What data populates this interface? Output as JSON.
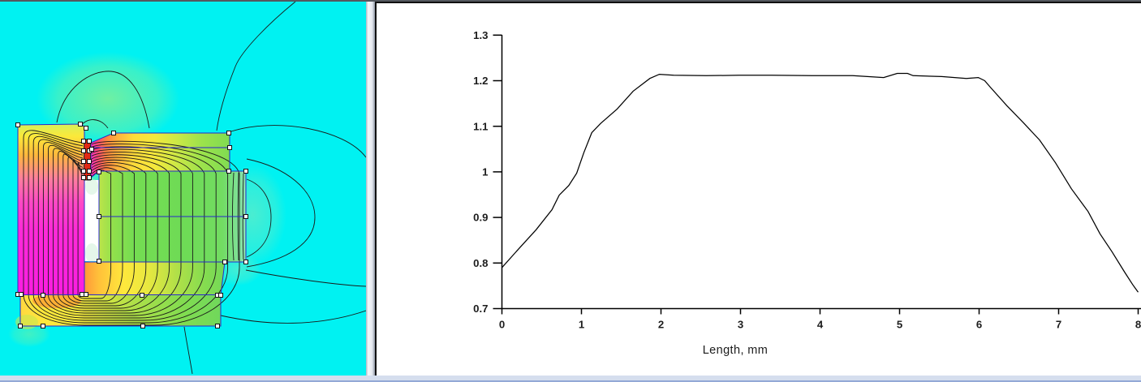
{
  "window": {
    "frame_top_color": "#54585e",
    "bottom_strip_color": "#d5deee",
    "divider_highlight": "#f6f8fb"
  },
  "left_panel": {
    "type": "magnetostatic-field-plot",
    "background_color": "#00f2f2",
    "outline_color": "#2828cc",
    "flux_line_color": "#1a1a1a",
    "handle_border_color": "#111111",
    "weak_field_tint_yellowgreen": "#b9ee6e",
    "weak_field_tint_mint": "#86e9b6",
    "regions": [
      {
        "name": "magnet-left-block",
        "colors": [
          "#d6ef5a",
          "#fbe93a",
          "#ffb83c",
          "#ff7e9e",
          "#ff2ad8"
        ]
      },
      {
        "name": "pole-top-trapezoid",
        "colors": [
          "#ff30c4",
          "#ff8440",
          "#ffdc3a",
          "#cce846",
          "#80dc52"
        ]
      },
      {
        "name": "core-right-block",
        "colors": [
          "#bce44a",
          "#74dc52",
          "#6edb56",
          "#8ce4b4"
        ]
      },
      {
        "name": "corner-region",
        "colors": [
          "#ff9838",
          "#ffe83c",
          "#b0e048",
          "#74d858"
        ]
      },
      {
        "name": "bottom-yoke",
        "colors": [
          "#ffd840",
          "#ffe33c",
          "#c9e646",
          "#70d85c"
        ]
      },
      {
        "name": "gap-source-bar",
        "color": "#e22814"
      },
      {
        "name": "air-gap-strip",
        "color": "#ffffff"
      }
    ]
  },
  "chart": {
    "xlabel": "Length, mm",
    "y_tick_labels": [
      "1.3",
      "1.2",
      "1.1",
      "1",
      "0.9",
      "0.8",
      "0.7"
    ],
    "y_tick_values": [
      1.3,
      1.2,
      1.1,
      1.0,
      0.9,
      0.8,
      0.7
    ],
    "x_tick_labels": [
      "0",
      "1",
      "2",
      "3",
      "4",
      "5",
      "6",
      "7",
      "8"
    ],
    "x_tick_values": [
      0,
      1,
      2,
      3,
      4,
      5,
      6,
      7,
      8
    ],
    "axis_color": "#000000",
    "text_color": "#1c1c1c",
    "plot_background": "#ffffff"
  },
  "chart_data": {
    "type": "line",
    "title": "",
    "xlabel": "Length, mm",
    "ylabel": "",
    "xlim": [
      0,
      8
    ],
    "ylim": [
      0.7,
      1.3
    ],
    "grid": false,
    "legend": null,
    "line_color": "#000000",
    "x": [
      0,
      0.22,
      0.43,
      0.63,
      0.72,
      0.84,
      0.94,
      1.03,
      1.13,
      1.24,
      1.45,
      1.65,
      1.86,
      1.98,
      2.16,
      2.57,
      2.98,
      3.39,
      3.9,
      4.41,
      4.8,
      4.97,
      5.1,
      5.17,
      5.53,
      5.84,
      5.99,
      6.07,
      6.14,
      6.35,
      6.55,
      6.76,
      6.96,
      7.16,
      7.37,
      7.52,
      7.67,
      7.83,
      7.93,
      8.0
    ],
    "values": [
      0.79,
      0.833,
      0.873,
      0.917,
      0.949,
      0.97,
      0.997,
      1.042,
      1.086,
      1.106,
      1.138,
      1.177,
      1.205,
      1.214,
      1.212,
      1.211,
      1.212,
      1.212,
      1.211,
      1.211,
      1.207,
      1.216,
      1.216,
      1.211,
      1.209,
      1.205,
      1.207,
      1.2,
      1.186,
      1.145,
      1.109,
      1.07,
      1.02,
      0.963,
      0.913,
      0.864,
      0.825,
      0.78,
      0.753,
      0.736
    ]
  }
}
